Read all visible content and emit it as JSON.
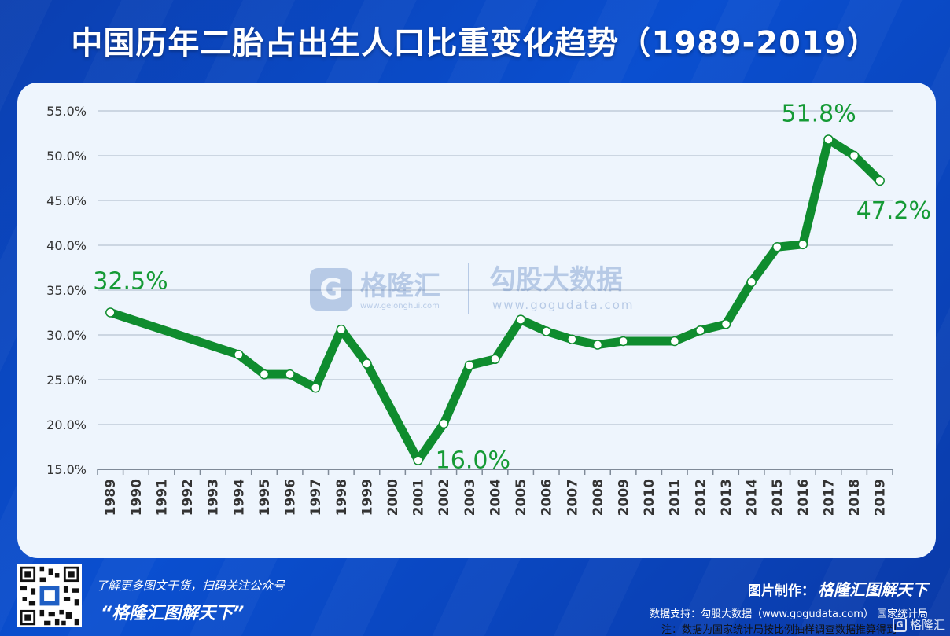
{
  "header": {
    "title": "中国历年二胎占出生人口比重变化趋势（1989-2019）"
  },
  "watermark": {
    "brand1": "格隆汇",
    "brand1_url": "www.gelonghui.com",
    "brand2": "勾股大数据",
    "brand2_url": "www.gogudata.com"
  },
  "note": "注：数据为国家统计局按比例抽样调查数据推算得到",
  "footer": {
    "promo": "了解更多图文干货，扫码关注公众号",
    "slogan": "“格隆汇图解天下”",
    "maker_label": "图片制作：",
    "maker_brand": "格隆汇图解天下",
    "support": "数据支持：勾股大数据（www.gogudata.com） 国家统计局",
    "corner_logo": "格隆汇"
  },
  "colors": {
    "line": "#0f8c2e",
    "label": "#159a35",
    "grid": "#b9c4d3",
    "axis": "#7f8a98"
  },
  "chart_data": {
    "type": "line",
    "title": "中国历年二胎占出生人口比重变化趋势（1989-2019）",
    "categories": [
      "1989",
      "1990",
      "1991",
      "1992",
      "1993",
      "1994",
      "1995",
      "1996",
      "1997",
      "1998",
      "1999",
      "2000",
      "2001",
      "2002",
      "2003",
      "2004",
      "2005",
      "2006",
      "2007",
      "2008",
      "2009",
      "2010",
      "2011",
      "2012",
      "2013",
      "2014",
      "2015",
      "2016",
      "2017",
      "2018",
      "2019"
    ],
    "series": [
      {
        "values": [
          32.5,
          null,
          null,
          null,
          null,
          27.8,
          25.6,
          25.6,
          24.1,
          30.6,
          26.8,
          null,
          16.0,
          20.1,
          26.6,
          27.3,
          31.7,
          30.4,
          29.5,
          28.9,
          29.3,
          null,
          29.3,
          30.5,
          31.2,
          35.9,
          39.8,
          40.1,
          51.8,
          50.0,
          47.2
        ]
      }
    ],
    "yticks": [
      "15.0%",
      "20.0%",
      "25.0%",
      "30.0%",
      "35.0%",
      "40.0%",
      "45.0%",
      "50.0%",
      "55.0%"
    ],
    "ylim": [
      15,
      55
    ],
    "grid": true,
    "annotations": [
      {
        "year": "1989",
        "text": "32.5%"
      },
      {
        "year": "2001",
        "text": "16.0%"
      },
      {
        "year": "2017",
        "text": "51.8%"
      },
      {
        "year": "2019",
        "text": "47.2%"
      }
    ]
  }
}
